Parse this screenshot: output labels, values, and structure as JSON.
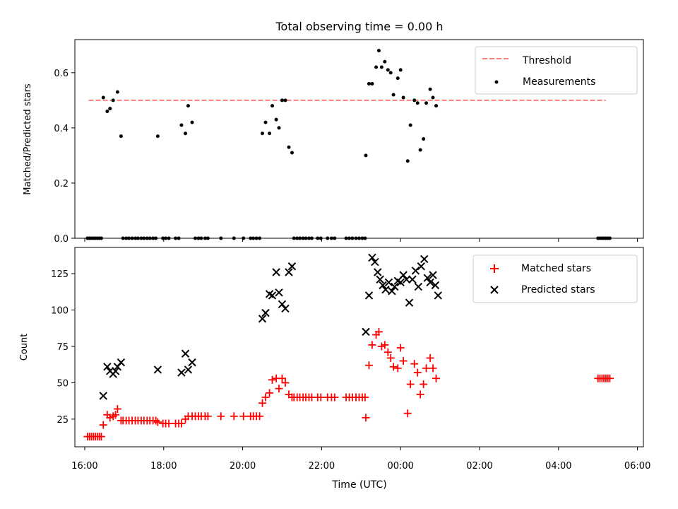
{
  "title": "Total observing time = 0.00 h",
  "colors": {
    "threshold": "#ff7f7f",
    "measurement": "#000000",
    "matched": "#ff0000",
    "predicted": "#000000"
  },
  "x_axis": {
    "label": "Time (UTC)",
    "domain_hours": [
      15.75,
      30.15
    ],
    "ticks": [
      {
        "h": 16,
        "label": "16:00"
      },
      {
        "h": 18,
        "label": "18:00"
      },
      {
        "h": 20,
        "label": "20:00"
      },
      {
        "h": 22,
        "label": "22:00"
      },
      {
        "h": 24,
        "label": "00:00"
      },
      {
        "h": 26,
        "label": "02:00"
      },
      {
        "h": 28,
        "label": "04:00"
      },
      {
        "h": 30,
        "label": "06:00"
      }
    ]
  },
  "chart_data": [
    {
      "type": "scatter",
      "panel": "top",
      "ylabel": "Matched/Predicted stars",
      "ylim": [
        0,
        0.72
      ],
      "yticks": [
        {
          "v": 0,
          "label": "0.0"
        },
        {
          "v": 0.2,
          "label": "0.2"
        },
        {
          "v": 0.4,
          "label": "0.4"
        },
        {
          "v": 0.6,
          "label": "0.6"
        }
      ],
      "legend": {
        "placement": "top-right",
        "threshold_label": "Threshold",
        "measurements_label": "Measurements"
      },
      "threshold": {
        "value": 0.5,
        "x_range": [
          16.1,
          29.2
        ]
      },
      "measurements": [
        [
          16.07,
          0
        ],
        [
          16.12,
          0
        ],
        [
          16.17,
          0
        ],
        [
          16.22,
          0
        ],
        [
          16.27,
          0
        ],
        [
          16.32,
          0
        ],
        [
          16.37,
          0
        ],
        [
          16.42,
          0
        ],
        [
          16.47,
          0.51
        ],
        [
          16.57,
          0.46
        ],
        [
          16.64,
          0.47
        ],
        [
          16.72,
          0.5
        ],
        [
          16.83,
          0.53
        ],
        [
          16.92,
          0.37
        ],
        [
          16.97,
          0
        ],
        [
          17.05,
          0
        ],
        [
          17.12,
          0
        ],
        [
          17.2,
          0
        ],
        [
          17.28,
          0
        ],
        [
          17.35,
          0
        ],
        [
          17.43,
          0
        ],
        [
          17.5,
          0
        ],
        [
          17.58,
          0
        ],
        [
          17.65,
          0
        ],
        [
          17.73,
          0
        ],
        [
          17.8,
          0
        ],
        [
          17.85,
          0.37
        ],
        [
          17.98,
          0
        ],
        [
          18.05,
          0
        ],
        [
          18.13,
          0
        ],
        [
          18.3,
          0
        ],
        [
          18.38,
          0
        ],
        [
          18.45,
          0.41
        ],
        [
          18.55,
          0.38
        ],
        [
          18.62,
          0.48
        ],
        [
          18.72,
          0.42
        ],
        [
          18.8,
          0
        ],
        [
          18.88,
          0
        ],
        [
          18.95,
          0
        ],
        [
          19.05,
          0
        ],
        [
          19.12,
          0
        ],
        [
          19.45,
          0
        ],
        [
          19.78,
          0
        ],
        [
          20.02,
          0
        ],
        [
          20.2,
          0
        ],
        [
          20.27,
          0
        ],
        [
          20.35,
          0
        ],
        [
          20.43,
          0
        ],
        [
          20.5,
          0.38
        ],
        [
          20.58,
          0.42
        ],
        [
          20.68,
          0.38
        ],
        [
          20.75,
          0.48
        ],
        [
          20.85,
          0.43
        ],
        [
          20.92,
          0.4
        ],
        [
          21.0,
          0.5
        ],
        [
          21.08,
          0.5
        ],
        [
          21.17,
          0.33
        ],
        [
          21.25,
          0.31
        ],
        [
          21.3,
          0
        ],
        [
          21.38,
          0
        ],
        [
          21.45,
          0
        ],
        [
          21.53,
          0
        ],
        [
          21.6,
          0
        ],
        [
          21.68,
          0
        ],
        [
          21.75,
          0
        ],
        [
          21.9,
          0
        ],
        [
          21.98,
          0
        ],
        [
          22.15,
          0
        ],
        [
          22.25,
          0
        ],
        [
          22.33,
          0
        ],
        [
          22.62,
          0
        ],
        [
          22.7,
          0
        ],
        [
          22.78,
          0
        ],
        [
          22.87,
          0
        ],
        [
          22.95,
          0
        ],
        [
          23.03,
          0
        ],
        [
          23.1,
          0
        ],
        [
          23.12,
          0.3
        ],
        [
          23.2,
          0.56
        ],
        [
          23.28,
          0.56
        ],
        [
          23.38,
          0.62
        ],
        [
          23.45,
          0.68
        ],
        [
          23.52,
          0.62
        ],
        [
          23.6,
          0.64
        ],
        [
          23.68,
          0.61
        ],
        [
          23.75,
          0.6
        ],
        [
          23.82,
          0.52
        ],
        [
          23.93,
          0.58
        ],
        [
          24.0,
          0.61
        ],
        [
          24.07,
          0.51
        ],
        [
          24.18,
          0.28
        ],
        [
          24.25,
          0.41
        ],
        [
          24.35,
          0.5
        ],
        [
          24.43,
          0.49
        ],
        [
          24.5,
          0.32
        ],
        [
          24.58,
          0.36
        ],
        [
          24.65,
          0.49
        ],
        [
          24.75,
          0.54
        ],
        [
          24.82,
          0.51
        ],
        [
          24.9,
          0.48
        ],
        [
          29.0,
          0
        ],
        [
          29.05,
          0
        ],
        [
          29.1,
          0
        ],
        [
          29.15,
          0
        ],
        [
          29.2,
          0
        ],
        [
          29.25,
          0
        ],
        [
          29.3,
          0
        ]
      ]
    },
    {
      "type": "scatter",
      "panel": "bottom",
      "ylabel": "Count",
      "ylim": [
        6,
        143
      ],
      "yticks": [
        {
          "v": 25,
          "label": "25"
        },
        {
          "v": 50,
          "label": "50"
        },
        {
          "v": 75,
          "label": "75"
        },
        {
          "v": 100,
          "label": "100"
        },
        {
          "v": 125,
          "label": "125"
        }
      ],
      "legend": {
        "placement": "top-right",
        "matched_label": "Matched stars",
        "predicted_label": "Predicted stars"
      },
      "matched": [
        [
          16.07,
          13
        ],
        [
          16.12,
          13
        ],
        [
          16.17,
          13
        ],
        [
          16.22,
          13
        ],
        [
          16.27,
          13
        ],
        [
          16.32,
          13
        ],
        [
          16.37,
          13
        ],
        [
          16.42,
          13
        ],
        [
          16.47,
          21
        ],
        [
          16.57,
          28
        ],
        [
          16.64,
          26
        ],
        [
          16.72,
          27
        ],
        [
          16.78,
          28
        ],
        [
          16.83,
          32
        ],
        [
          16.92,
          24
        ],
        [
          16.97,
          24
        ],
        [
          17.05,
          24
        ],
        [
          17.12,
          24
        ],
        [
          17.2,
          24
        ],
        [
          17.28,
          24
        ],
        [
          17.35,
          24
        ],
        [
          17.43,
          24
        ],
        [
          17.5,
          24
        ],
        [
          17.58,
          24
        ],
        [
          17.65,
          24
        ],
        [
          17.73,
          24
        ],
        [
          17.8,
          24
        ],
        [
          17.85,
          23
        ],
        [
          17.98,
          22
        ],
        [
          18.05,
          22
        ],
        [
          18.13,
          22
        ],
        [
          18.3,
          22
        ],
        [
          18.38,
          22
        ],
        [
          18.45,
          22
        ],
        [
          18.55,
          25
        ],
        [
          18.62,
          27
        ],
        [
          18.72,
          27
        ],
        [
          18.8,
          27
        ],
        [
          18.88,
          27
        ],
        [
          18.95,
          27
        ],
        [
          19.05,
          27
        ],
        [
          19.12,
          27
        ],
        [
          19.45,
          27
        ],
        [
          19.78,
          27
        ],
        [
          20.02,
          27
        ],
        [
          20.2,
          27
        ],
        [
          20.27,
          27
        ],
        [
          20.35,
          27
        ],
        [
          20.43,
          27
        ],
        [
          20.5,
          36
        ],
        [
          20.58,
          40
        ],
        [
          20.68,
          43
        ],
        [
          20.75,
          52
        ],
        [
          20.85,
          53
        ],
        [
          20.92,
          46
        ],
        [
          21.0,
          53
        ],
        [
          21.08,
          50
        ],
        [
          21.17,
          42
        ],
        [
          21.25,
          40
        ],
        [
          21.3,
          40
        ],
        [
          21.38,
          40
        ],
        [
          21.45,
          40
        ],
        [
          21.53,
          40
        ],
        [
          21.6,
          40
        ],
        [
          21.68,
          40
        ],
        [
          21.75,
          40
        ],
        [
          21.9,
          40
        ],
        [
          21.98,
          40
        ],
        [
          22.15,
          40
        ],
        [
          22.25,
          40
        ],
        [
          22.33,
          40
        ],
        [
          22.62,
          40
        ],
        [
          22.7,
          40
        ],
        [
          22.78,
          40
        ],
        [
          22.87,
          40
        ],
        [
          22.95,
          40
        ],
        [
          23.03,
          40
        ],
        [
          23.1,
          40
        ],
        [
          23.12,
          26
        ],
        [
          23.2,
          62
        ],
        [
          23.28,
          76
        ],
        [
          23.38,
          83
        ],
        [
          23.45,
          85
        ],
        [
          23.52,
          75
        ],
        [
          23.6,
          76
        ],
        [
          23.68,
          71
        ],
        [
          23.75,
          67
        ],
        [
          23.82,
          61
        ],
        [
          23.93,
          60
        ],
        [
          24.0,
          74
        ],
        [
          24.07,
          65
        ],
        [
          24.18,
          29
        ],
        [
          24.25,
          49
        ],
        [
          24.35,
          63
        ],
        [
          24.43,
          57
        ],
        [
          24.5,
          42
        ],
        [
          24.58,
          49
        ],
        [
          24.65,
          60
        ],
        [
          24.75,
          67
        ],
        [
          24.82,
          60
        ],
        [
          24.9,
          53
        ],
        [
          29.0,
          53
        ],
        [
          29.05,
          53
        ],
        [
          29.1,
          53
        ],
        [
          29.15,
          53
        ],
        [
          29.2,
          53
        ],
        [
          29.25,
          53
        ],
        [
          29.3,
          53
        ]
      ],
      "predicted": [
        [
          16.47,
          41
        ],
        [
          16.57,
          61
        ],
        [
          16.64,
          58
        ],
        [
          16.72,
          56
        ],
        [
          16.78,
          58
        ],
        [
          16.83,
          61
        ],
        [
          16.92,
          64
        ],
        [
          17.85,
          59
        ],
        [
          18.45,
          57
        ],
        [
          18.55,
          70
        ],
        [
          18.62,
          59
        ],
        [
          18.72,
          64
        ],
        [
          20.5,
          94
        ],
        [
          20.58,
          98
        ],
        [
          20.68,
          111
        ],
        [
          20.75,
          110
        ],
        [
          20.85,
          126
        ],
        [
          20.92,
          112
        ],
        [
          21.0,
          104
        ],
        [
          21.08,
          101
        ],
        [
          21.17,
          126
        ],
        [
          21.25,
          130
        ],
        [
          23.12,
          85
        ],
        [
          23.2,
          110
        ],
        [
          23.28,
          136
        ],
        [
          23.35,
          133
        ],
        [
          23.42,
          126
        ],
        [
          23.48,
          121
        ],
        [
          23.55,
          117
        ],
        [
          23.62,
          114
        ],
        [
          23.7,
          119
        ],
        [
          23.78,
          113
        ],
        [
          23.85,
          116
        ],
        [
          23.93,
          120
        ],
        [
          24.0,
          119
        ],
        [
          24.07,
          124
        ],
        [
          24.15,
          121
        ],
        [
          24.22,
          105
        ],
        [
          24.3,
          121
        ],
        [
          24.38,
          127
        ],
        [
          24.45,
          116
        ],
        [
          24.52,
          130
        ],
        [
          24.6,
          135
        ],
        [
          24.68,
          122
        ],
        [
          24.75,
          119
        ],
        [
          24.82,
          124
        ],
        [
          24.88,
          117
        ],
        [
          24.95,
          110
        ]
      ]
    }
  ]
}
